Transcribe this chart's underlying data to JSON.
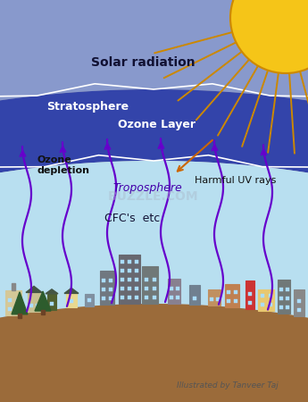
{
  "bg_color": "#c0c0c0",
  "stratosphere_color": "#8899cc",
  "ozone_layer_color": "#3344aa",
  "troposphere_color": "#b8dff0",
  "earth_color": "#9b6b3a",
  "sun_color": "#f5c518",
  "sun_outline_color": "#cc8800",
  "sun_ray_color": "#cc8800",
  "arrow_color": "#6600cc",
  "arrow_uv_color": "#cc6600",
  "text_solar": "Solar radiation",
  "text_stratosphere": "Stratosphere",
  "text_ozone": "Ozone Layer",
  "text_troposphere": "Troposphere",
  "text_ozone_dep": "Ozone\ndepletion",
  "text_harmful": "Harmful UV rays",
  "text_cfc": "CFC's  etc",
  "text_buzzle": "BUZZLE.COM",
  "text_credit": "Illustrated by Tanveer Taj"
}
